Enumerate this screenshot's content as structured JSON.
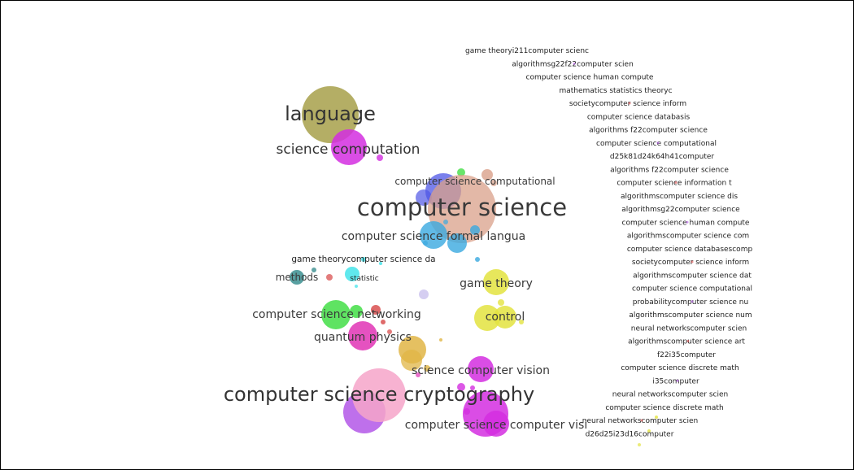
{
  "map": {
    "labels": {
      "language": "language",
      "science_computation": "science computation",
      "computer_science_computational": "computer science computational",
      "computer_science": "computer science",
      "computer_science_formal_langua": "computer science formal langua",
      "game_theorycomputer_science_da": "game theorycomputer science da",
      "methods": "methods",
      "statistic": "statistic",
      "game_theory": "game theory",
      "computer_science_networking": "computer science networking",
      "control": "control",
      "quantum_physics": "quantum physics",
      "science_computer_vision": "science computer vision",
      "computer_science_cryptography": "computer science cryptography",
      "computer_science_computer_visi": "computer science computer visi"
    },
    "right_column": [
      "game theoryi211computer scienc",
      "algorithmsg22f22computer scien",
      "computer science human compute",
      "mathematics statistics theoryc",
      "societycomputer science inform",
      "computer science databasis",
      "algorithms f22computer science",
      "computer science computational",
      "d25k81d24k64h41computer",
      "algorithms f22computer science",
      "computer science information t",
      "algorithmscomputer science dis",
      "algorithmsg22computer science",
      "computer science human compute",
      "algorithmscomputer science com",
      "computer science databasescomp",
      "societycomputer science inform",
      "algorithmscomputer science dat",
      "computer science computational",
      "probabilitycomputer science nu",
      "algorithmscomputer science num",
      "neural networkscomputer scien",
      "algorithmscomputer science art",
      "f22i35computer",
      "computer science discrete math",
      "i35computer",
      "neural networkscomputer scien",
      "computer science discrete math",
      "neural networkscomputer scien",
      "d26d25i23d16computer"
    ]
  },
  "colors": {
    "olive": "#a7a04a",
    "magenta": "#d32ee0",
    "salmon": "#d9a089",
    "blue": "#4e55e6",
    "skyblue": "#3aa9e0",
    "teal": "#3b8f90",
    "cyan": "#38e2e9",
    "yellow": "#e3e340",
    "green": "#43de46",
    "deeppink": "#e034b5",
    "gold": "#e0b545",
    "pink": "#f6a4c9",
    "violet": "#b357e8",
    "lavender": "#cbc2ee",
    "red": "#d74545"
  }
}
